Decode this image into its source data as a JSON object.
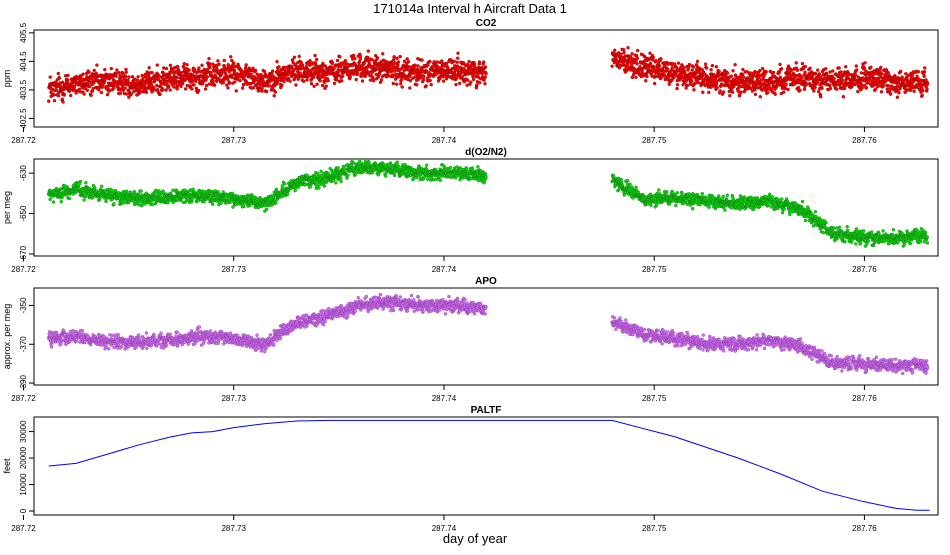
{
  "title": "171014a   Interval h Aircraft Data 1",
  "xlabel": "day of year",
  "colors": {
    "co2": "#ff0000",
    "o2n2": "#00e000",
    "apo": "#d070f0",
    "paltf": "#0000ff",
    "axis": "#000000"
  },
  "chart_data": [
    {
      "type": "scatter",
      "title": "CO2",
      "ylabel": "ppm",
      "xlim": [
        287.7205,
        287.7635
      ],
      "ylim": [
        402.2,
        405.6
      ],
      "xticks": [
        287.72,
        287.73,
        287.74,
        287.75,
        287.76
      ],
      "xtick_labels": [
        "287.72",
        "287.73",
        "287.74",
        "287.75",
        "287.76"
      ],
      "yticks": [
        402.5,
        403.5,
        404.5,
        405.5
      ],
      "ytick_labels": [
        "402.5",
        "403.5",
        "404.5",
        "405.5"
      ],
      "series": [
        {
          "x": [
            287.7212,
            287.7225,
            287.724,
            287.7255,
            287.727,
            287.7285,
            287.73,
            287.7315,
            287.733,
            287.7345,
            287.736,
            287.7375,
            287.739,
            287.7405,
            287.742
          ],
          "y": [
            403.5,
            403.7,
            403.8,
            403.7,
            403.9,
            404.0,
            404.1,
            403.8,
            404.2,
            404.1,
            404.3,
            404.2,
            404.1,
            404.2,
            404.1
          ]
        },
        {
          "x": [
            287.748,
            287.7495,
            287.751,
            287.7525,
            287.754,
            287.7555,
            287.757,
            287.7585,
            287.76,
            287.7615,
            287.763
          ],
          "y": [
            404.6,
            404.3,
            404.1,
            403.9,
            403.8,
            403.8,
            403.9,
            403.8,
            403.9,
            403.8,
            403.7
          ]
        }
      ]
    },
    {
      "type": "scatter",
      "title": "d(O2/N2)",
      "ylabel": "per meg",
      "xlim": [
        287.7205,
        287.7635
      ],
      "ylim": [
        -671,
        -623
      ],
      "xticks": [
        287.72,
        287.73,
        287.74,
        287.75,
        287.76
      ],
      "xtick_labels": [
        "287.72",
        "287.73",
        "287.74",
        "287.75",
        "287.76"
      ],
      "yticks": [
        -670,
        -650,
        -630
      ],
      "ytick_labels": [
        "-670",
        "-650",
        "-630"
      ],
      "series": [
        {
          "x": [
            287.7212,
            287.7225,
            287.724,
            287.7255,
            287.727,
            287.7285,
            287.73,
            287.7315,
            287.733,
            287.7345,
            287.736,
            287.7375,
            287.739,
            287.7405,
            287.742
          ],
          "y": [
            -641,
            -638,
            -641,
            -643,
            -642,
            -641,
            -643,
            -645,
            -635,
            -632,
            -627,
            -628,
            -630,
            -630,
            -631
          ]
        },
        {
          "x": [
            287.748,
            287.7495,
            287.751,
            287.7525,
            287.754,
            287.7555,
            287.757,
            287.7585,
            287.76,
            287.7615,
            287.763
          ],
          "y": [
            -633,
            -643,
            -642,
            -644,
            -645,
            -644,
            -648,
            -660,
            -662,
            -662,
            -661
          ]
        }
      ]
    },
    {
      "type": "scatter",
      "title": "APO",
      "ylabel": "approx. per meg",
      "xlim": [
        287.7205,
        287.7635
      ],
      "ylim": [
        -391,
        -341
      ],
      "xticks": [
        287.72,
        287.73,
        287.74,
        287.75,
        287.76
      ],
      "xtick_labels": [
        "287.72",
        "287.73",
        "287.74",
        "287.75",
        "287.76"
      ],
      "yticks": [
        -390,
        -370,
        -350
      ],
      "ytick_labels": [
        "-390",
        "-370",
        "-350"
      ],
      "series": [
        {
          "x": [
            287.7212,
            287.7225,
            287.724,
            287.7255,
            287.727,
            287.7285,
            287.73,
            287.7315,
            287.733,
            287.7345,
            287.736,
            287.7375,
            287.739,
            287.7405,
            287.742
          ],
          "y": [
            -367,
            -366,
            -369,
            -369,
            -368,
            -366,
            -367,
            -370,
            -359,
            -355,
            -350,
            -348,
            -350,
            -350,
            -352
          ]
        },
        {
          "x": [
            287.748,
            287.7495,
            287.751,
            287.7525,
            287.754,
            287.7555,
            287.757,
            287.7585,
            287.76,
            287.7615,
            287.763
          ],
          "y": [
            -358,
            -365,
            -367,
            -370,
            -370,
            -368,
            -371,
            -380,
            -380,
            -381,
            -381
          ]
        }
      ]
    },
    {
      "type": "line",
      "title": "PALTF",
      "ylabel": "feet",
      "xlim": [
        287.7205,
        287.7635
      ],
      "ylim": [
        -1500,
        35500
      ],
      "xticks": [
        287.72,
        287.73,
        287.74,
        287.75,
        287.76
      ],
      "xtick_labels": [
        "287.72",
        "287.73",
        "287.74",
        "287.75",
        "287.76"
      ],
      "yticks": [
        0,
        10000,
        20000,
        30000
      ],
      "ytick_labels": [
        "0",
        "10000",
        "20000",
        "30000"
      ],
      "x": [
        287.7212,
        287.7225,
        287.724,
        287.7255,
        287.727,
        287.728,
        287.729,
        287.73,
        287.7315,
        287.733,
        287.7345,
        287.736,
        287.748,
        287.751,
        287.754,
        287.756,
        287.758,
        287.76,
        287.7615,
        287.7625,
        287.7631
      ],
      "y": [
        17000,
        18000,
        21500,
        25000,
        28000,
        29500,
        30000,
        31500,
        33000,
        34000,
        34200,
        34200,
        34200,
        28000,
        20000,
        14000,
        7500,
        3500,
        1000,
        300,
        300
      ]
    }
  ]
}
